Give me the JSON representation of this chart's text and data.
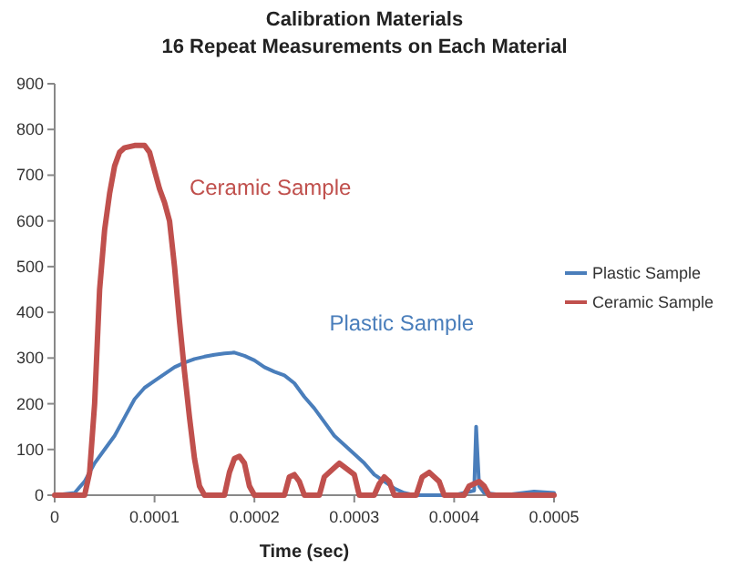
{
  "chart_data": {
    "type": "line",
    "title": "Calibration Materials",
    "subtitle": "16 Repeat Measurements on Each Material",
    "xlabel": "Time (sec)",
    "xlim": [
      0,
      0.0005
    ],
    "xticks": [
      0,
      0.0001,
      0.0002,
      0.0003,
      0.0004,
      0.0005
    ],
    "ylim": [
      0,
      900
    ],
    "yticks": [
      0,
      100,
      200,
      300,
      400,
      500,
      600,
      700,
      800,
      900
    ],
    "grid": false,
    "legend": "right",
    "marker": "none",
    "line_style": "solid",
    "annotations": [
      "Plastic Sample",
      "Ceramic Sample"
    ],
    "series": [
      {
        "name": "Plastic Sample",
        "color": "#4a7ebb",
        "x": [
          0,
          2e-05,
          3e-05,
          4e-05,
          5e-05,
          6e-05,
          7e-05,
          8e-05,
          9e-05,
          0.0001,
          0.00011,
          0.00012,
          0.00013,
          0.00014,
          0.00015,
          0.00016,
          0.00017,
          0.00018,
          0.00019,
          0.0002,
          0.00021,
          0.00022,
          0.00023,
          0.00024,
          0.00025,
          0.00026,
          0.00027,
          0.00028,
          0.00029,
          0.0003,
          0.00031,
          0.00032,
          0.00033,
          0.00034,
          0.00035,
          0.00036,
          0.0004,
          0.00042,
          0.000422,
          0.000425,
          0.00043,
          0.00045,
          0.00048,
          0.0005
        ],
        "values": [
          0,
          5,
          30,
          70,
          100,
          130,
          170,
          210,
          235,
          250,
          265,
          280,
          290,
          298,
          303,
          307,
          310,
          312,
          305,
          295,
          280,
          270,
          262,
          245,
          215,
          190,
          160,
          130,
          110,
          90,
          70,
          45,
          30,
          15,
          5,
          0,
          0,
          10,
          150,
          20,
          5,
          0,
          8,
          5
        ]
      },
      {
        "name": "Ceramic Sample",
        "color": "#c0504d",
        "x": [
          0,
          3e-05,
          3.5e-05,
          4e-05,
          4.5e-05,
          5e-05,
          5.5e-05,
          6e-05,
          6.5e-05,
          7e-05,
          8e-05,
          9e-05,
          9.5e-05,
          0.0001,
          0.000105,
          0.00011,
          0.000115,
          0.00012,
          0.000125,
          0.00013,
          0.000135,
          0.00014,
          0.000145,
          0.00015,
          0.00017,
          0.000175,
          0.00018,
          0.000185,
          0.00019,
          0.000195,
          0.0002,
          0.00023,
          0.000235,
          0.00024,
          0.000245,
          0.00025,
          0.000265,
          0.00027,
          0.000285,
          0.0003,
          0.000305,
          0.00032,
          0.000325,
          0.00033,
          0.000335,
          0.00034,
          0.000362,
          0.000368,
          0.000375,
          0.000385,
          0.00039,
          0.00041,
          0.000415,
          0.000425,
          0.00043,
          0.000435,
          0.0005
        ],
        "values": [
          0,
          0,
          50,
          200,
          450,
          580,
          660,
          720,
          750,
          760,
          765,
          765,
          750,
          710,
          670,
          640,
          600,
          500,
          380,
          270,
          170,
          80,
          20,
          0,
          0,
          50,
          80,
          85,
          70,
          20,
          0,
          0,
          40,
          45,
          30,
          0,
          0,
          40,
          70,
          45,
          0,
          0,
          25,
          40,
          30,
          0,
          0,
          40,
          50,
          30,
          0,
          0,
          20,
          30,
          20,
          0,
          0
        ]
      }
    ]
  }
}
